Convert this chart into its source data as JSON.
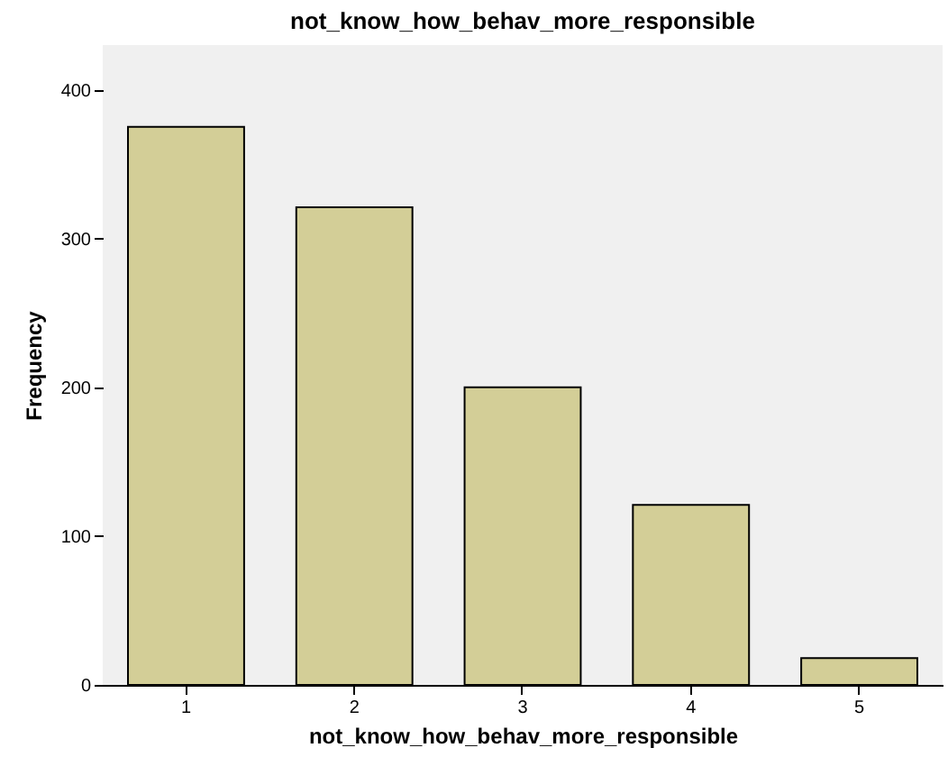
{
  "chart_data": {
    "type": "bar",
    "title": "not_know_how_behav_more_responsible",
    "xlabel": "not_know_how_behav_more_responsible",
    "ylabel": "Frequency",
    "categories": [
      "1",
      "2",
      "3",
      "4",
      "5"
    ],
    "values": [
      375,
      321,
      200,
      121,
      18
    ],
    "color": "#d3ce97",
    "ylim": [
      0,
      430
    ],
    "yticks": [
      0,
      100,
      200,
      300,
      400
    ],
    "grid": false,
    "legend": false
  }
}
